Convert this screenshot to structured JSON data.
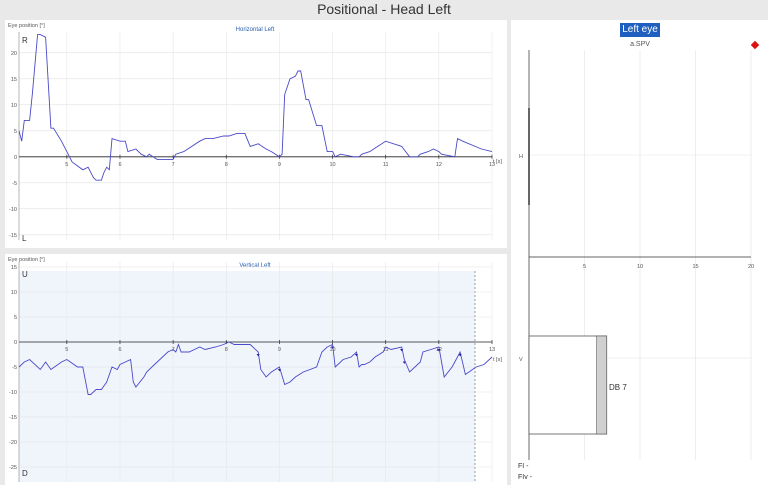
{
  "window": {
    "title": "Positional - Head Left"
  },
  "horizontal": {
    "title": "Horizontal Left",
    "ylabel": "Eye position [°]",
    "top_marker": "R",
    "bottom_marker": "L",
    "xunit": "t [s]",
    "xticks": [
      "5",
      "6",
      "7",
      "8",
      "9",
      "10",
      "11",
      "12",
      "13"
    ],
    "yticks": [
      "20",
      "15",
      "10",
      "5",
      "0",
      "-5",
      "-10",
      "-15"
    ]
  },
  "vertical": {
    "title": "Vertical Left",
    "ylabel": "Eye position [°]",
    "top_marker": "U",
    "bottom_marker": "D",
    "xunit": "t [s]",
    "xticks": [
      "5",
      "6",
      "7",
      "8",
      "9",
      "10",
      "11",
      "12",
      "13"
    ],
    "yticks": [
      "15",
      "10",
      "5",
      "0",
      "-5",
      "-10",
      "-15",
      "-20",
      "-25"
    ]
  },
  "right_panel": {
    "tab_label": "Left eye",
    "metric_label": "a.SPV",
    "h_label": "H",
    "v_label": "V",
    "xticks": [
      "5",
      "10",
      "15",
      "20"
    ],
    "bar_label": "DB 7",
    "fi_label": "FI -",
    "fiv_label": "FIv -",
    "indicator_color": "#e01010"
  },
  "chart_data": [
    {
      "type": "line",
      "title": "Horizontal Left",
      "xlabel": "t [s]",
      "ylabel": "Eye position [°]",
      "xlim": [
        4.1,
        13
      ],
      "ylim": [
        -16,
        24
      ],
      "color": "#4040c0",
      "series": [
        {
          "x": [
            4.1,
            4.15,
            4.2,
            4.3,
            4.35,
            4.45,
            4.5,
            4.6,
            4.7,
            4.75,
            4.9,
            5.0,
            5.1,
            5.3,
            5.4,
            5.5,
            5.55,
            5.65,
            5.7,
            5.75,
            5.8,
            5.85,
            6.0,
            6.1,
            6.15,
            6.3,
            6.4,
            6.5,
            6.55,
            6.7,
            6.9,
            7.0,
            7.05,
            7.2,
            7.5,
            7.6,
            7.75,
            7.95,
            8.05,
            8.2,
            8.35,
            8.45,
            8.6,
            8.75,
            8.85,
            9.0,
            9.05,
            9.1,
            9.2,
            9.3,
            9.35,
            9.4,
            9.5,
            9.55,
            9.7,
            9.8,
            9.9,
            10.0,
            10.05,
            10.15,
            10.4,
            10.5,
            10.55,
            10.7,
            10.85,
            11.0,
            11.3,
            11.45,
            11.6,
            11.65,
            11.8,
            11.9,
            12.0,
            12.05,
            12.3,
            12.35,
            12.45,
            12.8,
            13.0
          ],
          "y": [
            5,
            3,
            7,
            7,
            12,
            23.5,
            23.5,
            23,
            5.5,
            5.5,
            3,
            1,
            -1,
            -2.5,
            -2,
            -4,
            -4.5,
            -4.5,
            -3,
            -2,
            -2.5,
            3.5,
            3,
            3,
            1,
            1.5,
            0.5,
            0,
            0.5,
            -0.5,
            -0.5,
            -0.5,
            0.5,
            1,
            3,
            3.5,
            3.5,
            4,
            4,
            4.5,
            4.5,
            2,
            2.5,
            1.5,
            1,
            0,
            0.5,
            12,
            15,
            15.5,
            16.5,
            16.5,
            11,
            11,
            6,
            6,
            1,
            1,
            0,
            0.5,
            0,
            0,
            0.5,
            1,
            2,
            3,
            2,
            0,
            0,
            0.5,
            1,
            1.5,
            1,
            0.5,
            0,
            3.5,
            3,
            1.5,
            1
          ]
        }
      ]
    },
    {
      "type": "line",
      "title": "Vertical Left",
      "xlabel": "t [s]",
      "ylabel": "Eye position [°]",
      "xlim": [
        4.1,
        13
      ],
      "ylim": [
        -28,
        16
      ],
      "color": "#4040c0",
      "series": [
        {
          "x": [
            4.1,
            4.2,
            4.3,
            4.5,
            4.6,
            4.7,
            4.9,
            5.0,
            5.2,
            5.3,
            5.4,
            5.45,
            5.55,
            5.65,
            5.75,
            5.85,
            5.95,
            6.0,
            6.1,
            6.2,
            6.25,
            6.3,
            6.45,
            6.5,
            6.6,
            6.7,
            6.8,
            6.9,
            7.0,
            7.05,
            7.1,
            7.15,
            7.3,
            7.5,
            7.6,
            7.8,
            7.95,
            8.05,
            8.15,
            8.3,
            8.45,
            8.6,
            8.65,
            8.75,
            8.85,
            9.0,
            9.1,
            9.2,
            9.3,
            9.45,
            9.7,
            9.8,
            9.9,
            10.0,
            10.05,
            10.2,
            10.35,
            10.45,
            10.5,
            10.55,
            10.6,
            10.7,
            10.8,
            10.95,
            11.0,
            11.1,
            11.3,
            11.35,
            11.45,
            11.55,
            11.65,
            11.7,
            11.85,
            12.0,
            12.1,
            12.25,
            12.3,
            12.4,
            12.5,
            12.7,
            12.85,
            13.0
          ],
          "y": [
            -5,
            -4,
            -3.5,
            -5.5,
            -4,
            -5.5,
            -4,
            -3.5,
            -5,
            -5,
            -10.5,
            -10.5,
            -9.5,
            -9.5,
            -8,
            -5,
            -5.5,
            -4.5,
            -4,
            -3.5,
            -8,
            -9,
            -7,
            -6,
            -5,
            -4,
            -3,
            -2,
            -1.5,
            -2,
            -0.5,
            -2,
            -2,
            -1,
            -1.5,
            -1,
            -0.5,
            0,
            -0.5,
            -0.5,
            -0.5,
            -2,
            -5.5,
            -7,
            -6,
            -5,
            -8.5,
            -8,
            -7,
            -6,
            -5,
            -2,
            -1,
            -0.5,
            -5,
            -3.5,
            -3,
            -2,
            -5,
            -4.5,
            -4.5,
            -4,
            -3,
            -2,
            -1,
            -1.5,
            -1,
            -3.5,
            -6,
            -5,
            -4,
            -2,
            -1.5,
            -1,
            -7,
            -5,
            -4,
            -2,
            -6.5,
            -5,
            -4.5,
            -3
          ]
        }
      ]
    },
    {
      "type": "bar",
      "title": "a.SPV",
      "categories": [
        "H",
        "V"
      ],
      "values": [
        0,
        7
      ],
      "xlim": [
        0,
        20
      ],
      "value_labels": [
        "",
        "DB 7"
      ]
    }
  ]
}
